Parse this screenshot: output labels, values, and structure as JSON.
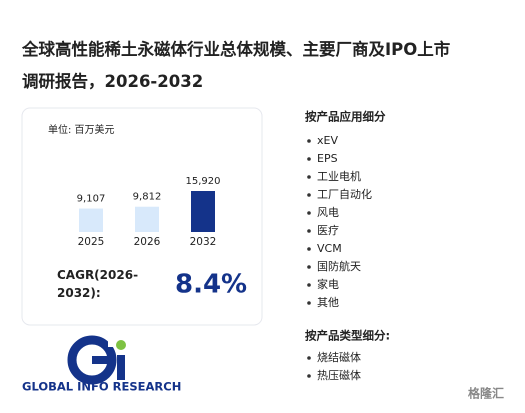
{
  "chart_data": {
    "type": "bar",
    "title": "全球高性能稀土永磁体行业总体规模、主要厂商及IPO上市调研报告，2026-2032",
    "unit": "单位: 百万美元",
    "categories": [
      "2025",
      "2026",
      "2032"
    ],
    "values": [
      9107,
      9812,
      15920
    ],
    "value_labels": [
      "9,107",
      "9,812",
      "15,920"
    ],
    "colors": [
      "#d8e9fb",
      "#d8e9fb",
      "#14338a"
    ],
    "cagr_label": "CAGR(2026-2032):",
    "cagr_value": "8.4%"
  },
  "segments": {
    "application_title": "按产品应用细分",
    "applications": [
      "xEV",
      "EPS",
      "工业电机",
      "工厂自动化",
      "风电",
      "医疗",
      "VCM",
      "国防航天",
      "家电",
      "其他"
    ],
    "type_title": "按产品类型细分:",
    "types": [
      "烧结磁体",
      "热压磁体"
    ]
  },
  "logo": {
    "text": "GLOBAL INFO RESEARCH"
  },
  "watermark": "格隆汇"
}
